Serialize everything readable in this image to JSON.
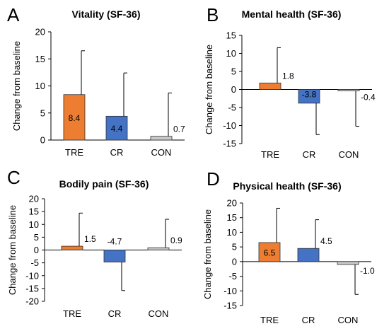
{
  "figure": {
    "ylabel": "Change from baseline"
  },
  "chart_data": [
    {
      "type": "bar",
      "panel": "A",
      "title": "Vitality (SF-36)",
      "ylabel": "Change from baseline",
      "categories": [
        "TRE",
        "CR",
        "CON"
      ],
      "values": [
        8.4,
        4.4,
        0.7
      ],
      "value_labels": [
        "8.4",
        "4.4",
        "0.7"
      ],
      "error_upper": [
        16.5,
        12.4,
        8.7
      ],
      "ylim": [
        0,
        20
      ],
      "yticks": [
        0,
        5,
        10,
        15,
        20
      ],
      "colors": [
        "#ed7d31",
        "#4472c4",
        "#c8c8c8"
      ]
    },
    {
      "type": "bar",
      "panel": "B",
      "title": "Mental health (SF-36)",
      "ylabel": "Change from baseline",
      "categories": [
        "TRE",
        "CR",
        "CON"
      ],
      "values": [
        1.8,
        -3.8,
        -0.4
      ],
      "value_labels": [
        "1.8",
        "-3.8",
        "-0.4"
      ],
      "error_end": [
        11.6,
        -12.5,
        -10.2
      ],
      "ylim": [
        -15,
        15
      ],
      "yticks": [
        -15,
        -10,
        -5,
        0,
        5,
        10,
        15
      ],
      "colors": [
        "#ed7d31",
        "#4472c4",
        "#c8c8c8"
      ]
    },
    {
      "type": "bar",
      "panel": "C",
      "title": "Bodily pain (SF-36)",
      "ylabel": "Change from baseline",
      "categories": [
        "TRE",
        "CR",
        "CON"
      ],
      "values": [
        1.5,
        -4.7,
        0.9
      ],
      "value_labels": [
        "1.5",
        "-4.7",
        "0.9"
      ],
      "error_end": [
        14.4,
        -15.8,
        12.0
      ],
      "ylim": [
        -20,
        20
      ],
      "yticks": [
        -20,
        -15,
        -10,
        -5,
        0,
        5,
        10,
        15,
        20
      ],
      "colors": [
        "#ed7d31",
        "#4472c4",
        "#c8c8c8"
      ]
    },
    {
      "type": "bar",
      "panel": "D",
      "title": "Physical health (SF-36)",
      "ylabel": "Change from baseline",
      "categories": [
        "TRE",
        "CR",
        "CON"
      ],
      "values": [
        6.5,
        4.5,
        -1.0
      ],
      "value_labels": [
        "6.5",
        "4.5",
        "-1.0"
      ],
      "error_end": [
        18.2,
        14.3,
        -11.2
      ],
      "ylim": [
        -15,
        20
      ],
      "yticks": [
        -15,
        -10,
        -5,
        0,
        5,
        10,
        15,
        20
      ],
      "colors": [
        "#ed7d31",
        "#4472c4",
        "#c8c8c8"
      ]
    }
  ]
}
